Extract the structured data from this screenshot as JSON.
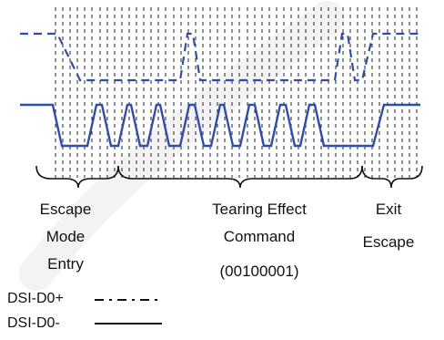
{
  "colors": {
    "signal": "#2f4eaa",
    "grid": "#222222",
    "text": "#111111",
    "watermark": "#cfcfcf"
  },
  "phases": {
    "escape_entry": [
      "Escape",
      "Mode",
      "Entry"
    ],
    "tearing_effect": [
      "Tearing Effect",
      "Command",
      "(00100001)"
    ],
    "exit_escape": [
      "Exit",
      "Escape"
    ]
  },
  "legend": {
    "positive": {
      "label": "DSI-D0+",
      "line_style": "dash-dot"
    },
    "negative": {
      "label": "DSI-D0-",
      "line_style": "solid"
    }
  }
}
